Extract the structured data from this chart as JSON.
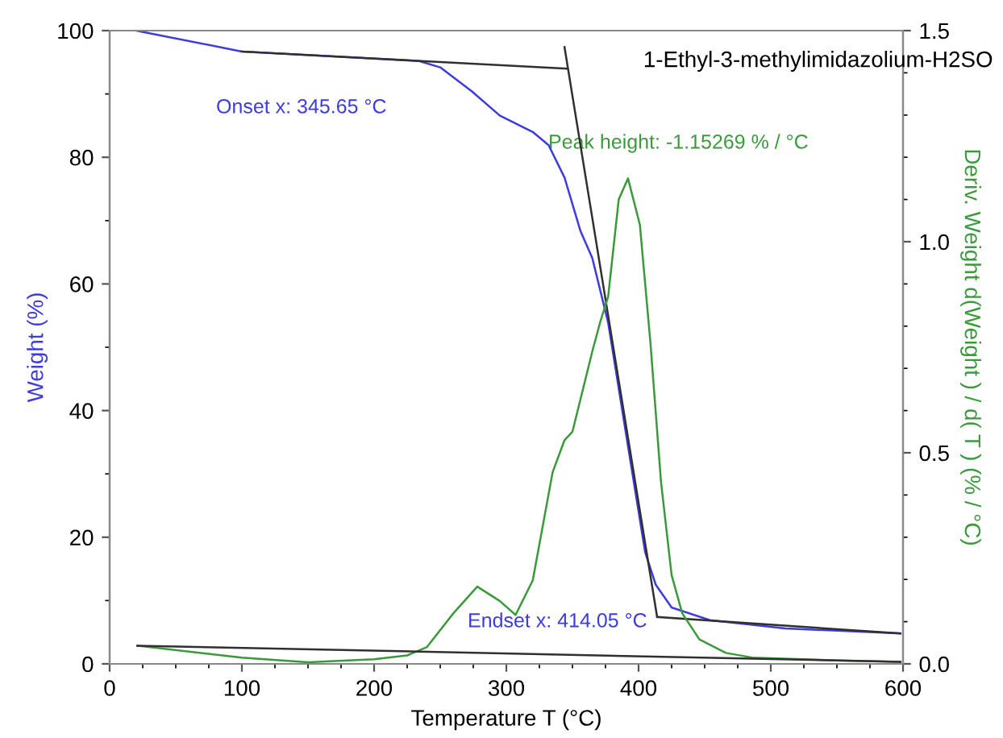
{
  "chart_data": {
    "type": "line",
    "title": "1-Ethyl-3-methylimidazolium-H2SO",
    "xlabel": "Temperature T (°C)",
    "ylabel": "Weight (%)",
    "y2label": "Deriv. Weight d(Weight ) / d( T ) (% / °C)",
    "annotations": [
      "Onset x: 345.65 °C",
      "Peak height: -1.15269 % / °C",
      "Endset x: 414.05 °C"
    ],
    "series": [
      {
        "color": "#3c3ce0",
        "x": [
          20,
          100,
          234,
          250,
          274,
          295,
          320,
          332,
          344,
          356,
          365,
          377,
          390,
          405,
          413,
          425,
          454,
          511,
          598
        ],
        "values": [
          100,
          96.7,
          95.2,
          94.2,
          90.4,
          86.6,
          84.0,
          81.9,
          76.8,
          68.4,
          64.1,
          53.9,
          37,
          17.6,
          12.5,
          8.9,
          6.9,
          5.6,
          4.8
        ]
      },
      {
        "color": "#3a9a3a",
        "axis": "y2",
        "x": [
          21,
          100,
          150,
          200,
          225,
          240,
          260,
          278,
          295,
          307,
          320,
          335,
          344,
          350,
          365,
          371,
          377,
          385,
          392,
          401,
          409,
          417,
          425,
          433,
          446,
          466,
          486,
          550,
          598
        ],
        "values": [
          0.043,
          0.015,
          0.004,
          0.011,
          0.02,
          0.04,
          0.12,
          0.183,
          0.149,
          0.116,
          0.198,
          0.454,
          0.53,
          0.55,
          0.74,
          0.81,
          0.87,
          1.1,
          1.15,
          1.04,
          0.76,
          0.43,
          0.21,
          0.12,
          0.058,
          0.026,
          0.015,
          0.008,
          0.005
        ]
      },
      {
        "color": "#303030",
        "x": [
          100,
          345.65
        ],
        "values": [
          96.7,
          94.0
        ]
      },
      {
        "color": "#303030",
        "x": [
          344,
          414.05
        ],
        "values": [
          97.4,
          7.4
        ]
      },
      {
        "color": "#303030",
        "x": [
          414.05,
          598
        ],
        "values": [
          7.4,
          4.8
        ]
      },
      {
        "color": "#303030",
        "axis": "y2",
        "x": [
          21,
          598
        ],
        "values": [
          0.043,
          0.005
        ]
      }
    ],
    "xlim": [
      0,
      600
    ],
    "xticks": [
      0,
      100,
      200,
      300,
      400,
      500,
      600
    ],
    "ylim": [
      0,
      100
    ],
    "yticks": [
      0,
      20,
      40,
      60,
      80,
      100
    ],
    "y2lim": [
      0,
      1.5
    ],
    "y2ticks": [
      {
        "value": 0,
        "label": "0.0"
      },
      {
        "value": 0.5,
        "label": "0.5"
      },
      {
        "value": 1.0,
        "label": "1.0"
      },
      {
        "value": 1.5,
        "label": "1.5"
      }
    ],
    "grid": false,
    "legend": false,
    "marker": "none",
    "line_style": "solid"
  }
}
